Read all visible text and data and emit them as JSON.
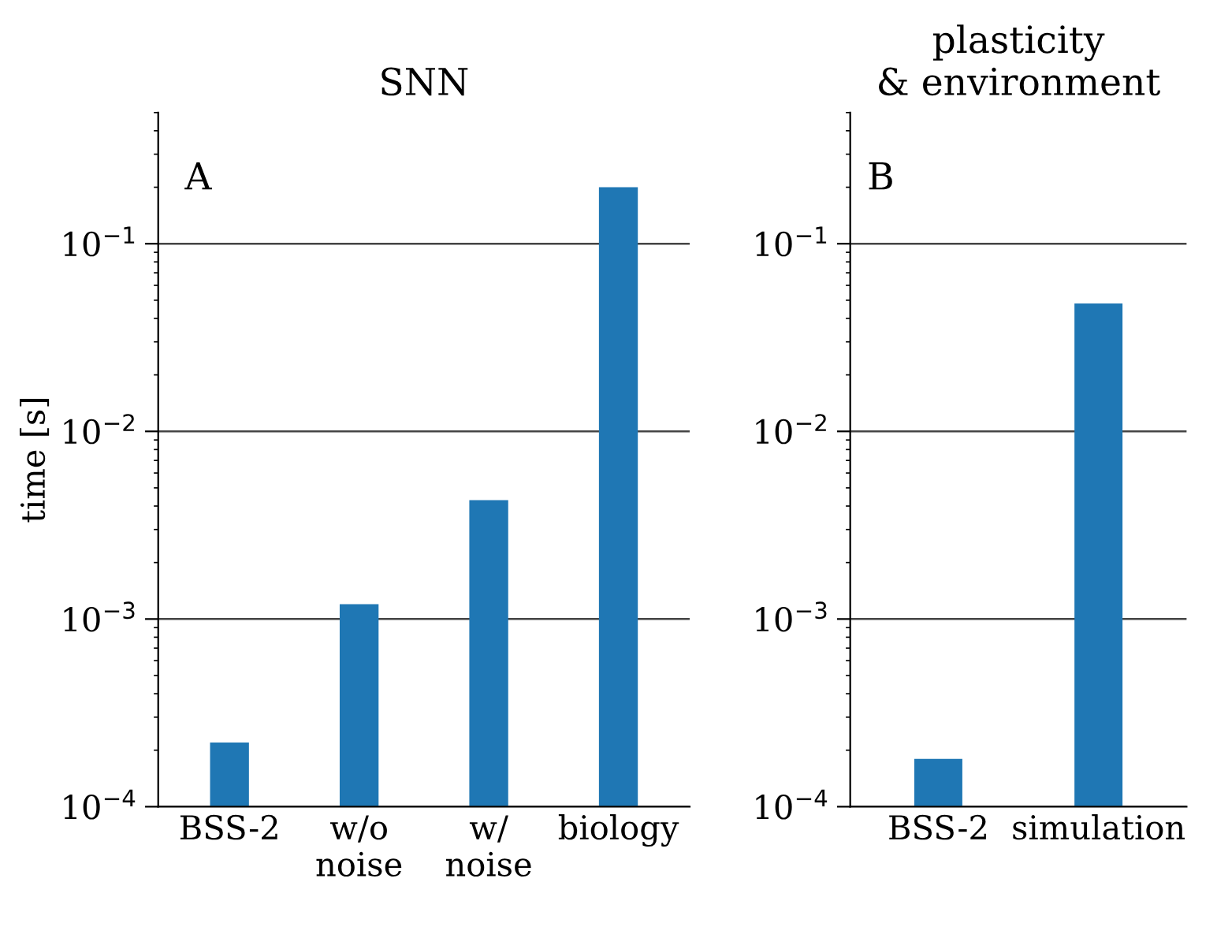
{
  "chart_data": [
    {
      "type": "bar",
      "title": "SNN",
      "ylabel": "time [s]",
      "categories": [
        "BSS-2",
        "w/o\nnoise",
        "w/\nnoise",
        "biology"
      ],
      "values": [
        0.00022,
        0.0012,
        0.0043,
        0.2
      ],
      "color": "#1f77b4",
      "log": true,
      "ylim": [
        0.0001,
        0.5
      ],
      "yticks": [
        {
          "value": 0.0001,
          "label": "10$^{−4}$"
        },
        {
          "value": 0.001,
          "label": "10$^{−3}$"
        },
        {
          "value": 0.01,
          "label": "10$^{−2}$"
        },
        {
          "value": 0.1,
          "label": "10$^{−1}$"
        }
      ],
      "grid": "y",
      "annotations": [
        "A"
      ]
    },
    {
      "type": "bar",
      "title": "plasticity\n& environment",
      "categories": [
        "BSS-2",
        "simulation"
      ],
      "values": [
        0.00018,
        0.048
      ],
      "color": "#1f77b4",
      "log": true,
      "ylim": [
        0.0001,
        0.5
      ],
      "yticks": [
        {
          "value": 0.0001,
          "label": "10$^{−4}$"
        },
        {
          "value": 0.001,
          "label": "10$^{−3}$"
        },
        {
          "value": 0.01,
          "label": "10$^{−2}$"
        },
        {
          "value": 0.1,
          "label": "10$^{−1}$"
        }
      ],
      "grid": "y",
      "annotations": [
        "B"
      ]
    }
  ]
}
